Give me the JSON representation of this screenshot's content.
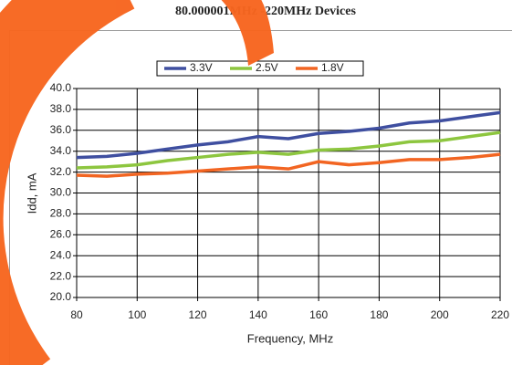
{
  "chart_data": {
    "type": "line",
    "title": "80.000001MHz -220MHz Devices",
    "x_label": "Frequency, MHz",
    "y_label": "Idd, mA",
    "x": [
      80,
      90,
      100,
      110,
      120,
      130,
      140,
      150,
      160,
      170,
      180,
      190,
      200,
      210,
      220
    ],
    "series": [
      {
        "name": "3.3V",
        "color": "#3f4fa0",
        "values": [
          33.4,
          33.5,
          33.8,
          34.2,
          34.6,
          34.9,
          35.4,
          35.2,
          35.7,
          35.9,
          36.2,
          36.7,
          36.9,
          37.3,
          37.7
        ]
      },
      {
        "name": "2.5V",
        "color": "#8dc63f",
        "values": [
          32.4,
          32.5,
          32.7,
          33.1,
          33.4,
          33.7,
          33.9,
          33.7,
          34.1,
          34.2,
          34.5,
          34.9,
          35.0,
          35.4,
          35.8
        ]
      },
      {
        "name": "1.8V",
        "color": "#f26522",
        "values": [
          31.7,
          31.6,
          31.8,
          31.9,
          32.1,
          32.3,
          32.5,
          32.3,
          33.0,
          32.7,
          32.9,
          33.2,
          33.2,
          33.4,
          33.7
        ]
      }
    ],
    "xlim": [
      80,
      220
    ],
    "xticks": [
      80,
      100,
      120,
      140,
      160,
      180,
      200,
      220
    ],
    "ylim": [
      20,
      40
    ],
    "yticks": [
      {
        "value": 20,
        "label": "20.0"
      },
      {
        "value": 22,
        "label": "22.0"
      },
      {
        "value": 24,
        "label": "24.0"
      },
      {
        "value": 26,
        "label": "26.0"
      },
      {
        "value": 28,
        "label": "28.0"
      },
      {
        "value": 30,
        "label": "30.0"
      },
      {
        "value": 32,
        "label": "32.0"
      },
      {
        "value": 34,
        "label": "34.0"
      },
      {
        "value": 36,
        "label": "36.0"
      },
      {
        "value": 38,
        "label": "38.0"
      },
      {
        "value": 40,
        "label": "40.0"
      }
    ],
    "grid": true,
    "legend": "top"
  }
}
